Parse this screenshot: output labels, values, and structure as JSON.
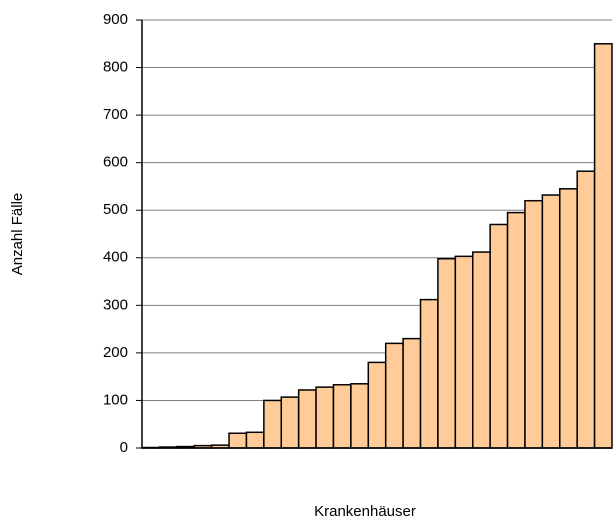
{
  "chart_data": {
    "type": "bar",
    "x_label": "Krankenhäuser",
    "y_label": "Anzahl Fälle",
    "categories": [
      null,
      null,
      null,
      null,
      null,
      null,
      null,
      null,
      null,
      null,
      null,
      null,
      null,
      null,
      null,
      null,
      null,
      null,
      null,
      null,
      null,
      null,
      null,
      null,
      null,
      null,
      null
    ],
    "values": [
      1,
      2,
      3,
      5,
      6,
      31,
      33,
      100,
      107,
      122,
      128,
      133,
      135,
      180,
      220,
      230,
      312,
      398,
      403,
      412,
      470,
      495,
      520,
      532,
      545,
      582,
      850
    ],
    "color": "#ffcc99",
    "ylim": [
      0,
      900
    ],
    "yticks": [
      0,
      100,
      200,
      300,
      400,
      500,
      600,
      700,
      800,
      900
    ],
    "grid": true
  }
}
